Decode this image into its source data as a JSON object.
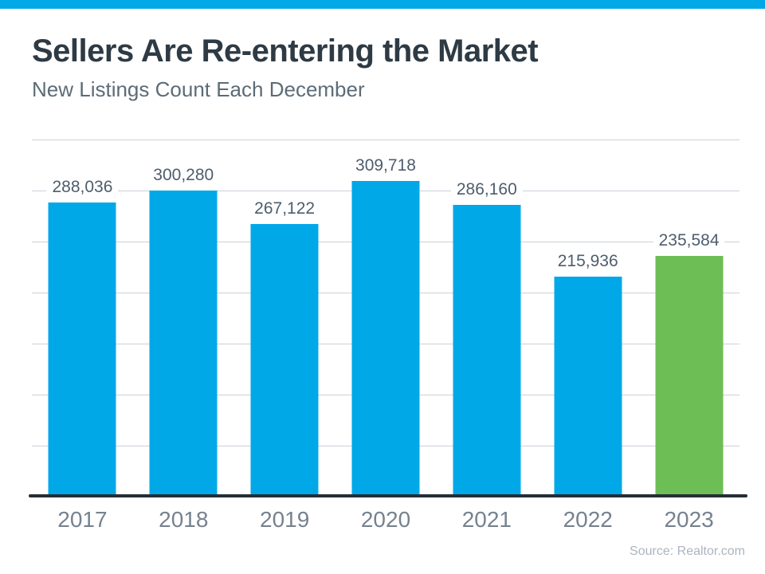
{
  "header": {
    "title": "Sellers Are Re-entering the Market",
    "subtitle": "New Listings Count Each December"
  },
  "footer": {
    "source": "Source: Realtor.com"
  },
  "colors": {
    "accent_blue": "#00A8E8",
    "bar_blue": "#00A8E8",
    "bar_green": "#6DBE55",
    "title": "#2E3A44",
    "subtitle": "#5C6C77",
    "data_label": "#4E5D6C",
    "year_label": "#76828F",
    "gridline": "#CBD1D8",
    "axis": "#242E38",
    "source": "#ABB5BF"
  },
  "chart_data": {
    "type": "bar",
    "title": "Sellers Are Re-entering the Market",
    "subtitle": "New Listings Count Each December",
    "categories": [
      "2017",
      "2018",
      "2019",
      "2020",
      "2021",
      "2022",
      "2023"
    ],
    "values": [
      288036,
      300280,
      267122,
      309718,
      286160,
      215936,
      235584
    ],
    "value_labels": [
      "288,036",
      "300,280",
      "267,122",
      "309,718",
      "286,160",
      "215,936",
      "235,584"
    ],
    "bar_colors": [
      "#00A8E8",
      "#00A8E8",
      "#00A8E8",
      "#00A8E8",
      "#00A8E8",
      "#00A8E8",
      "#6DBE55"
    ],
    "highlight_index": 6,
    "xlabel": "",
    "ylabel": "",
    "ylim": [
      0,
      350000
    ],
    "gridline_interval": 50000,
    "grid": true,
    "legend": false,
    "y_axis_labels_visible": false,
    "source": "Source: Realtor.com"
  }
}
